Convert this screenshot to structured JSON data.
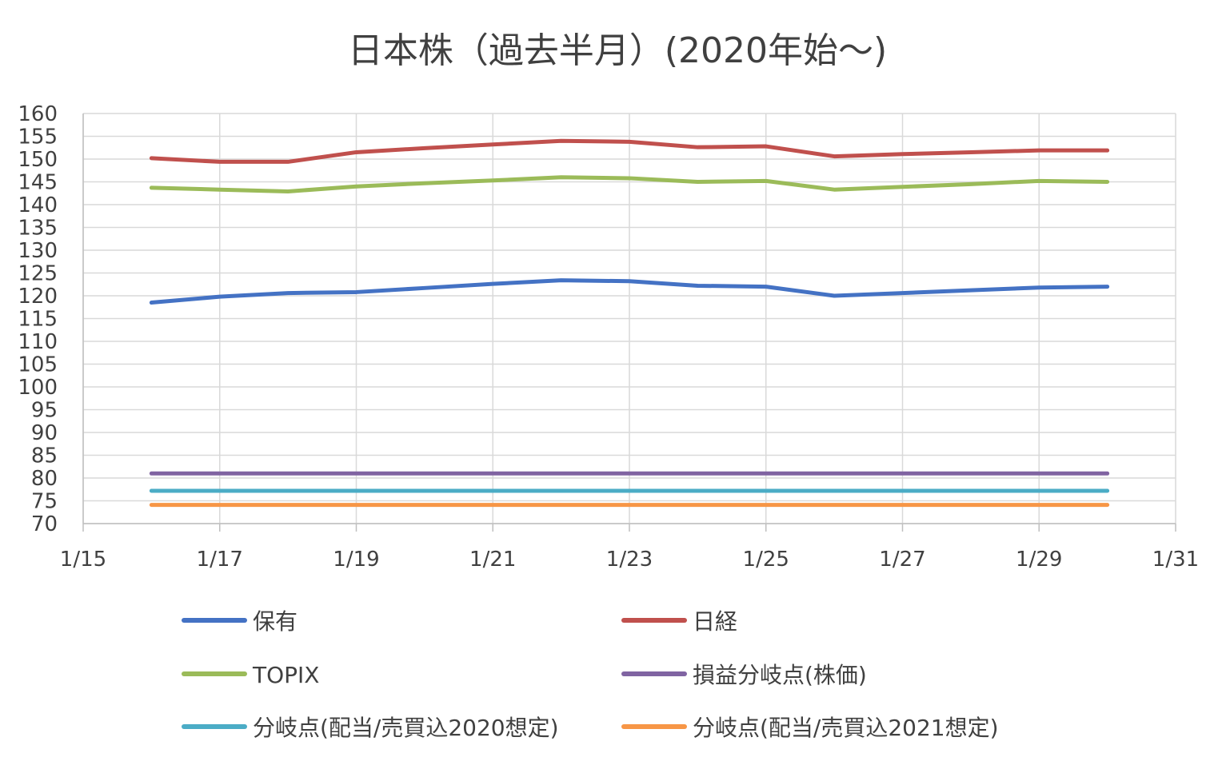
{
  "chart_data": {
    "type": "line",
    "title": "日本株（過去半月）(2020年始～)",
    "x_ticks": [
      "1/15",
      "1/17",
      "1/19",
      "1/21",
      "1/23",
      "1/25",
      "1/27",
      "1/29",
      "1/31"
    ],
    "xlim": [
      15,
      31
    ],
    "ylim": [
      70,
      160
    ],
    "y_step": 5,
    "grid": true,
    "legend_position": "bottom",
    "x": [
      16,
      17,
      18,
      19,
      20,
      21,
      22,
      23,
      24,
      25,
      26,
      27,
      28,
      29,
      30
    ],
    "series": [
      {
        "name": "保有",
        "color": "#4472C4",
        "values": [
          118.5,
          119.8,
          120.6,
          120.8,
          121.7,
          122.6,
          123.4,
          123.2,
          122.2,
          122.0,
          120.0,
          120.6,
          121.2,
          121.8,
          122.0
        ]
      },
      {
        "name": "日経",
        "color": "#C0504D",
        "values": [
          150.2,
          149.4,
          149.4,
          151.5,
          152.4,
          153.2,
          154.0,
          153.8,
          152.6,
          152.8,
          150.6,
          151.1,
          151.5,
          151.9,
          151.9
        ]
      },
      {
        "name": "TOPIX",
        "color": "#9BBB59",
        "values": [
          143.7,
          143.3,
          142.9,
          144.0,
          144.7,
          145.3,
          146.0,
          145.8,
          145.0,
          145.2,
          143.3,
          143.9,
          144.5,
          145.2,
          145.0
        ]
      },
      {
        "name": "損益分岐点(株価)",
        "color": "#8064A2",
        "values": [
          81,
          81,
          81,
          81,
          81,
          81,
          81,
          81,
          81,
          81,
          81,
          81,
          81,
          81,
          81
        ]
      },
      {
        "name": "分岐点(配当/売買込2020想定)",
        "color": "#4BACC6",
        "values": [
          77.2,
          77.2,
          77.2,
          77.2,
          77.2,
          77.2,
          77.2,
          77.2,
          77.2,
          77.2,
          77.2,
          77.2,
          77.2,
          77.2,
          77.2
        ]
      },
      {
        "name": "分岐点(配当/売買込2021想定)",
        "color": "#F79646",
        "values": [
          74.1,
          74.1,
          74.1,
          74.1,
          74.1,
          74.1,
          74.1,
          74.1,
          74.1,
          74.1,
          74.1,
          74.1,
          74.1,
          74.1,
          74.1
        ]
      }
    ]
  }
}
